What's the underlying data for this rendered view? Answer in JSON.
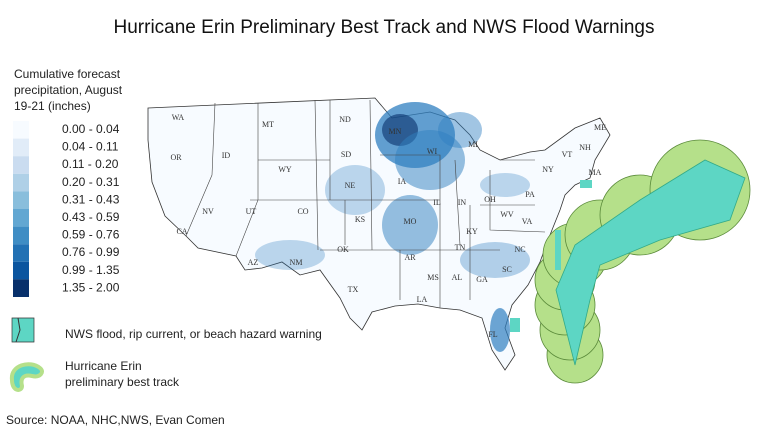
{
  "header": {
    "title": "Hurricane Erin Preliminary Best Track and NWS Flood Warnings"
  },
  "legend": {
    "title_lines": [
      "Cumulative forecast",
      "precipitation, August",
      "19-21 (inches)"
    ],
    "bins": [
      {
        "label": "0.00 - 0.04",
        "color": "#f7fbff"
      },
      {
        "label": "0.04 - 0.11",
        "color": "#e1ecf8"
      },
      {
        "label": "0.11 - 0.20",
        "color": "#cadcf0"
      },
      {
        "label": "0.20 - 0.31",
        "color": "#afd0e7"
      },
      {
        "label": "0.31 - 0.43",
        "color": "#89bedc"
      },
      {
        "label": "0.43 - 0.59",
        "color": "#62a7d2"
      },
      {
        "label": "0.59 - 0.76",
        "color": "#3f8dc4"
      },
      {
        "label": "0.76 - 0.99",
        "color": "#2271b4"
      },
      {
        "label": "0.99 - 1.35",
        "color": "#0b559f"
      },
      {
        "label": "1.35 - 2.00",
        "color": "#08306b"
      }
    ],
    "items": [
      "NWS flood, rip current, or beach hazard warning",
      "Hurricane Erin",
      "preliminary best track"
    ]
  },
  "state_labels": [
    "WA",
    "MT",
    "ND",
    "MN",
    "WI",
    "MI",
    "OR",
    "ID",
    "SD",
    "WY",
    "NE",
    "IA",
    "IL",
    "IN",
    "OH",
    "PA",
    "NY",
    "VT",
    "NH",
    "ME",
    "MA",
    "NV",
    "UT",
    "CO",
    "KS",
    "MO",
    "KY",
    "WV",
    "VA",
    "CA",
    "OK",
    "AR",
    "TN",
    "NC",
    "AZ",
    "NM",
    "SC",
    "MS",
    "AL",
    "GA",
    "TX",
    "LA",
    "FL"
  ],
  "source": "Source: NOAA, NHC,NWS, Evan Comen"
}
